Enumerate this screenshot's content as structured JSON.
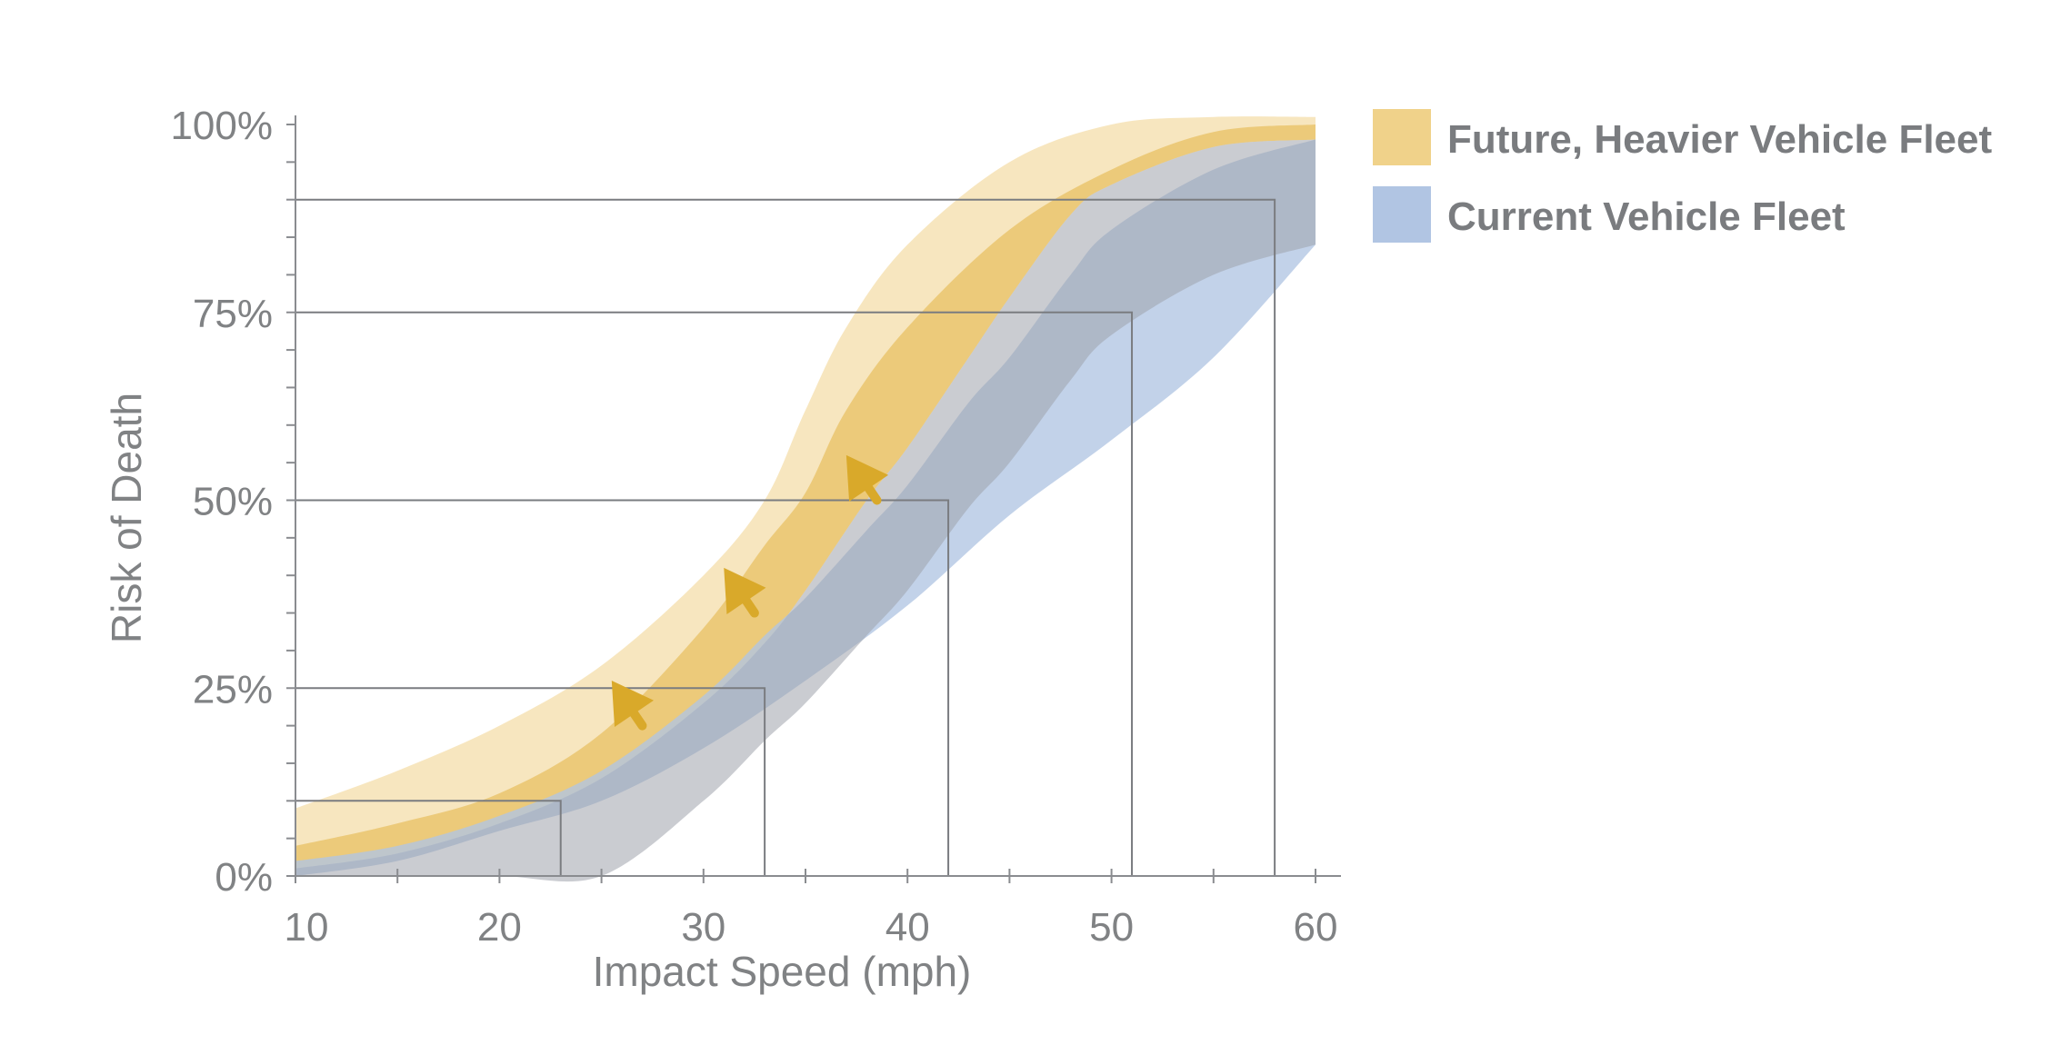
{
  "chart_data": {
    "type": "area",
    "xlabel": "Impact Speed (mph)",
    "ylabel": "Risk of Death",
    "xlim": [
      10,
      60
    ],
    "ylim": [
      0,
      100
    ],
    "x_ticks": [
      10,
      20,
      30,
      40,
      50,
      60
    ],
    "x_tick_labels": [
      "10",
      "20",
      "30",
      "40",
      "50",
      "60"
    ],
    "y_ticks": [
      0,
      25,
      50,
      75,
      100
    ],
    "y_tick_labels": [
      "0%",
      "25%",
      "50%",
      "75%",
      "100%"
    ],
    "legend": {
      "position": "right",
      "entries": [
        {
          "label": "Future, Heavier Vehicle Fleet",
          "color": "#f0d28a"
        },
        {
          "label": "Current Vehicle Fleet",
          "color": "#b1c5e3"
        }
      ]
    },
    "series": [
      {
        "name": "Future, Heavier Vehicle Fleet",
        "fill": "#f0d28a",
        "core_fill": "#e8c063",
        "outer_upper": [
          [
            10,
            9
          ],
          [
            15,
            14
          ],
          [
            20,
            20
          ],
          [
            25,
            28
          ],
          [
            30,
            40
          ],
          [
            33,
            50
          ],
          [
            35,
            62
          ],
          [
            37,
            73
          ],
          [
            40,
            84
          ],
          [
            45,
            95
          ],
          [
            50,
            100
          ],
          [
            55,
            101
          ],
          [
            60,
            101
          ]
        ],
        "outer_lower": [
          [
            10,
            1
          ],
          [
            15,
            3
          ],
          [
            20,
            7
          ],
          [
            25,
            13
          ],
          [
            30,
            23
          ],
          [
            33,
            31
          ],
          [
            35,
            38
          ],
          [
            38,
            50
          ],
          [
            40,
            57
          ],
          [
            43,
            69
          ],
          [
            45,
            77
          ],
          [
            48,
            88
          ],
          [
            50,
            92
          ],
          [
            55,
            97
          ],
          [
            60,
            98
          ]
        ],
        "core_upper": [
          [
            10,
            4
          ],
          [
            15,
            7
          ],
          [
            20,
            11
          ],
          [
            25,
            19
          ],
          [
            30,
            33
          ],
          [
            33,
            44
          ],
          [
            35,
            51
          ],
          [
            37,
            62
          ],
          [
            40,
            73
          ],
          [
            45,
            86
          ],
          [
            50,
            94
          ],
          [
            55,
            99
          ],
          [
            60,
            100
          ]
        ],
        "core_lower": [
          [
            10,
            1
          ],
          [
            15,
            3
          ],
          [
            20,
            7
          ],
          [
            25,
            13
          ],
          [
            30,
            23
          ],
          [
            33,
            31
          ],
          [
            35,
            38
          ],
          [
            38,
            50
          ],
          [
            40,
            57
          ],
          [
            43,
            69
          ],
          [
            45,
            77
          ],
          [
            48,
            88
          ],
          [
            50,
            92
          ],
          [
            55,
            97
          ],
          [
            60,
            98
          ]
        ]
      },
      {
        "name": "Current Vehicle Fleet",
        "fill": "#b1c5e3",
        "upper": [
          [
            10,
            2
          ],
          [
            15,
            4
          ],
          [
            20,
            8
          ],
          [
            25,
            14
          ],
          [
            30,
            24
          ],
          [
            33,
            32
          ],
          [
            35,
            37
          ],
          [
            38,
            46
          ],
          [
            40,
            52
          ],
          [
            43,
            63
          ],
          [
            45,
            69
          ],
          [
            48,
            80
          ],
          [
            50,
            86
          ],
          [
            55,
            94
          ],
          [
            60,
            98
          ]
        ],
        "lower": [
          [
            10,
            0
          ],
          [
            15,
            2
          ],
          [
            20,
            6
          ],
          [
            25,
            10
          ],
          [
            30,
            17
          ],
          [
            35,
            26
          ],
          [
            40,
            36
          ],
          [
            45,
            48
          ],
          [
            50,
            58
          ],
          [
            55,
            69
          ],
          [
            60,
            84
          ]
        ]
      }
    ],
    "reference_lines": [
      {
        "risk": 10,
        "speed": 23
      },
      {
        "risk": 25,
        "speed": 33
      },
      {
        "risk": 50,
        "speed": 42
      },
      {
        "risk": 75,
        "speed": 51
      },
      {
        "risk": 90,
        "speed": 58
      }
    ],
    "annotations": {
      "arrows": [
        {
          "from": [
            27,
            20
          ],
          "to": [
            25.5,
            26
          ]
        },
        {
          "from": [
            32.5,
            35
          ],
          "to": [
            31,
            41
          ]
        },
        {
          "from": [
            38.5,
            50
          ],
          "to": [
            37,
            56
          ]
        }
      ],
      "arrow_color": "#d9a92a"
    },
    "grid": false
  }
}
